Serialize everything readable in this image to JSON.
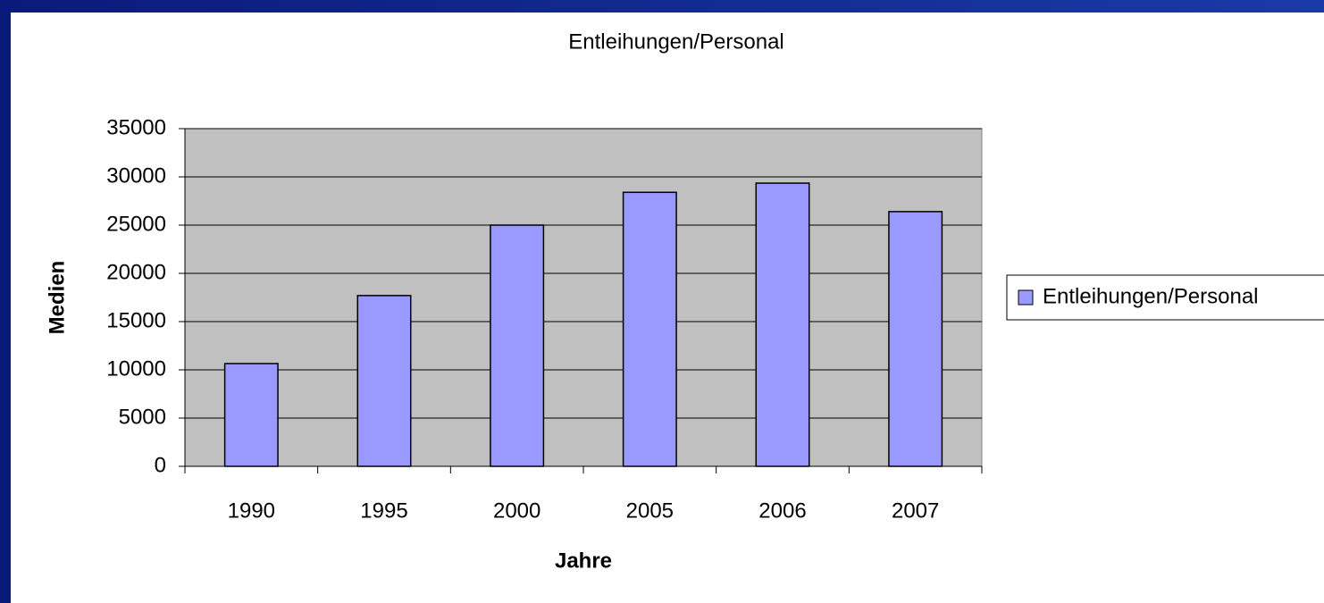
{
  "chart_data": {
    "type": "bar",
    "title": "Entleihungen/Personal",
    "x_label": "Jahre",
    "y_label": "Medien",
    "categories": [
      "1990",
      "1995",
      "2000",
      "2005",
      "2006",
      "2007"
    ],
    "series": [
      {
        "name": "Entleihungen/Personal",
        "color": "#9999ff",
        "values": [
          10650,
          17700,
          25000,
          28400,
          29350,
          26400
        ]
      }
    ],
    "ylim": [
      0,
      35000
    ],
    "yticks": [
      0,
      5000,
      10000,
      15000,
      20000,
      25000,
      30000,
      35000
    ],
    "grid": true,
    "legend": "right"
  }
}
